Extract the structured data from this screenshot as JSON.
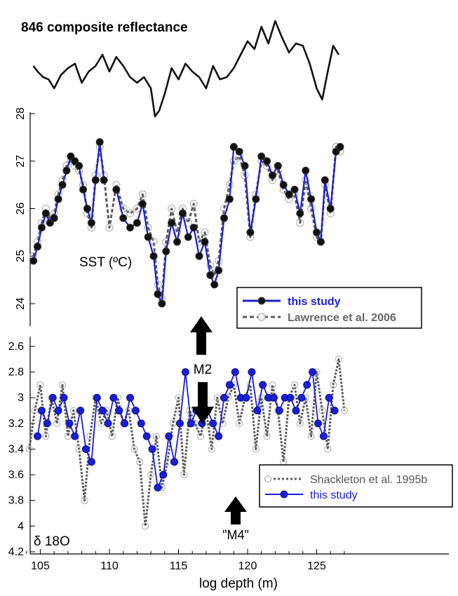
{
  "chart_data": [
    {
      "type": "line",
      "title": "846 composite reflectance",
      "x": [
        104.5,
        104.8,
        105.2,
        105.6,
        106.0,
        106.5,
        107.0,
        107.5,
        108.0,
        108.5,
        109.0,
        109.5,
        110.0,
        110.5,
        111.0,
        111.5,
        112.0,
        112.5,
        113.0,
        113.3,
        113.6,
        114.0,
        114.5,
        115.0,
        115.5,
        116.0,
        116.5,
        117.0,
        117.5,
        118.0,
        118.5,
        119.0,
        119.5,
        120.0,
        120.5,
        121.0,
        121.5,
        122.0,
        122.5,
        123.0,
        123.5,
        124.0,
        124.5,
        125.0,
        125.4,
        125.8,
        126.2,
        126.6
      ],
      "values": [
        0.6,
        0.55,
        0.5,
        0.48,
        0.4,
        0.52,
        0.58,
        0.62,
        0.45,
        0.55,
        0.6,
        0.7,
        0.55,
        0.68,
        0.6,
        0.5,
        0.45,
        0.5,
        0.4,
        0.15,
        0.2,
        0.35,
        0.58,
        0.48,
        0.62,
        0.55,
        0.5,
        0.4,
        0.6,
        0.48,
        0.5,
        0.58,
        0.7,
        0.82,
        0.75,
        0.95,
        0.8,
        1.0,
        0.85,
        0.72,
        0.8,
        0.78,
        0.62,
        0.4,
        0.3,
        0.55,
        0.78,
        0.7
      ],
      "xlim": [
        104,
        127
      ]
    },
    {
      "type": "line",
      "ylabel": "SST (ºC)",
      "ylim": [
        23.5,
        28
      ],
      "yticks": [
        24,
        25,
        26,
        27,
        28
      ],
      "xlim": [
        104,
        127
      ],
      "legend_placement": "lower-center",
      "series": [
        {
          "name": "this study",
          "color": "#1a1fd6",
          "marker": "filled-circle",
          "x": [
            104.5,
            104.8,
            105.1,
            105.4,
            105.7,
            106.0,
            106.3,
            106.6,
            106.9,
            107.2,
            107.5,
            107.8,
            108.1,
            108.4,
            108.7,
            109.0,
            109.3,
            109.6,
            110.0,
            110.5,
            111.0,
            111.5,
            112.0,
            112.4,
            112.8,
            113.2,
            113.5,
            113.8,
            114.1,
            114.5,
            114.9,
            115.3,
            115.7,
            116.1,
            116.5,
            116.9,
            117.3,
            117.6,
            117.9,
            118.3,
            118.7,
            119.0,
            119.4,
            119.8,
            120.2,
            120.6,
            121.0,
            121.4,
            121.8,
            122.2,
            122.6,
            123.0,
            123.4,
            123.8,
            124.2,
            124.6,
            125.0,
            125.3,
            125.6,
            126.0,
            126.4,
            126.7
          ],
          "values": [
            24.9,
            25.2,
            25.6,
            25.9,
            25.7,
            25.8,
            26.2,
            26.5,
            26.8,
            27.1,
            27.0,
            26.9,
            26.4,
            26.0,
            25.7,
            26.6,
            27.4,
            26.6,
            null,
            26.4,
            25.8,
            25.6,
            25.7,
            26.1,
            25.4,
            25.0,
            24.2,
            24.0,
            25.1,
            25.7,
            25.3,
            25.9,
            25.4,
            25.6,
            25.0,
            25.3,
            24.6,
            24.4,
            24.7,
            25.8,
            26.2,
            27.3,
            27.2,
            26.9,
            25.5,
            26.2,
            27.1,
            27.0,
            26.7,
            26.9,
            26.5,
            26.3,
            26.4,
            25.9,
            26.8,
            26.2,
            25.5,
            25.3,
            26.6,
            26.0,
            27.2,
            27.3
          ]
        },
        {
          "name": "Lawrence et al. 2006",
          "color": "#5a5a5a",
          "marker": "open-circle",
          "dash": "dashed",
          "x": [
            104.5,
            104.8,
            105.1,
            105.4,
            105.7,
            106.0,
            106.3,
            106.6,
            106.9,
            107.2,
            107.5,
            107.8,
            108.1,
            108.4,
            108.7,
            109.0,
            109.3,
            109.6,
            110.0,
            110.5,
            111.0,
            111.5,
            112.0,
            112.4,
            112.8,
            113.2,
            113.5,
            113.8,
            114.1,
            114.5,
            114.9,
            115.3,
            115.7,
            116.1,
            116.5,
            116.9,
            117.3,
            117.6,
            117.9,
            118.3,
            118.7,
            119.0,
            119.4,
            119.8,
            120.2,
            120.6,
            121.0,
            121.4,
            121.8,
            122.2,
            122.6,
            123.0,
            123.4,
            123.8,
            124.2,
            124.6,
            125.0,
            125.3,
            125.6,
            126.0,
            126.4,
            126.7
          ],
          "values": [
            25.0,
            25.3,
            25.7,
            26.0,
            25.8,
            25.9,
            26.3,
            26.6,
            26.9,
            27.0,
            26.9,
            26.8,
            26.5,
            25.9,
            25.6,
            26.7,
            27.3,
            26.7,
            25.6,
            26.5,
            26.0,
            25.9,
            26.0,
            26.3,
            25.6,
            25.3,
            24.4,
            24.1,
            25.3,
            26.0,
            25.5,
            26.0,
            25.7,
            26.1,
            25.3,
            25.5,
            24.8,
            24.6,
            24.9,
            26.0,
            26.5,
            27.0,
            27.1,
            26.7,
            25.4,
            26.3,
            27.0,
            26.9,
            26.6,
            26.8,
            26.4,
            26.2,
            26.3,
            25.7,
            26.6,
            26.0,
            25.4,
            25.3,
            26.5,
            25.9,
            27.3,
            27.2
          ]
        }
      ]
    },
    {
      "type": "line",
      "ylabel": "δ 18O",
      "yaxis_inverted": true,
      "ylim": [
        4.2,
        2.5
      ],
      "yticks": [
        2.6,
        2.8,
        3,
        3.2,
        3.4,
        3.6,
        3.8,
        4,
        4.2
      ],
      "xlim": [
        104,
        127
      ],
      "xticks": [
        105,
        110,
        115,
        120,
        125
      ],
      "xlabel": "log depth (m)",
      "legend_placement": "lower-right",
      "series": [
        {
          "name": "Shackleton et al. 1995b",
          "color": "#5a5a5a",
          "marker": "open-circle",
          "dash": "dotted",
          "x": [
            104.2,
            104.6,
            105.0,
            105.4,
            105.8,
            106.2,
            106.6,
            107.0,
            107.4,
            107.8,
            108.2,
            108.6,
            109.0,
            109.4,
            109.8,
            110.2,
            110.6,
            111.0,
            111.4,
            111.8,
            112.2,
            112.6,
            113.0,
            113.4,
            113.8,
            114.2,
            114.6,
            115.0,
            115.4,
            115.8,
            116.2,
            116.6,
            117.0,
            117.4,
            117.8,
            118.2,
            118.6,
            119.0,
            119.4,
            119.8,
            120.2,
            120.6,
            121.0,
            121.4,
            121.8,
            122.2,
            122.6,
            123.0,
            123.4,
            123.8,
            124.2,
            124.6,
            125.0,
            125.4,
            125.8,
            126.2,
            126.6,
            127.0
          ],
          "values": [
            3.4,
            3.1,
            2.9,
            3.3,
            3.0,
            3.2,
            2.9,
            3.3,
            3.1,
            3.4,
            3.8,
            3.3,
            3.0,
            3.2,
            3.1,
            3.3,
            3.0,
            3.2,
            3.1,
            3.4,
            3.5,
            4.0,
            3.6,
            3.3,
            3.7,
            3.5,
            3.2,
            3.0,
            3.6,
            3.1,
            3.2,
            3.3,
            3.1,
            3.4,
            3.0,
            3.2,
            3.0,
            2.9,
            3.2,
            3.0,
            2.9,
            3.4,
            3.0,
            3.3,
            2.9,
            3.1,
            3.5,
            3.0,
            2.9,
            3.2,
            3.0,
            3.3,
            2.8,
            3.1,
            3.4,
            2.9,
            2.7,
            3.1
          ]
        },
        {
          "name": "this study",
          "color": "#1a1fd6",
          "marker": "filled-circle",
          "x": [
            104.8,
            105.1,
            105.5,
            105.9,
            106.3,
            106.7,
            107.1,
            107.5,
            107.9,
            108.3,
            108.7,
            109.1,
            109.5,
            109.9,
            110.3,
            110.7,
            111.1,
            111.5,
            111.9,
            112.3,
            112.7,
            113.1,
            113.5,
            113.9,
            114.3,
            114.7,
            115.1,
            115.5,
            115.9,
            116.3,
            116.7,
            117.1,
            117.5,
            117.9,
            118.3,
            118.7,
            119.1,
            119.5,
            119.9,
            120.3,
            120.7,
            121.1,
            121.5,
            121.9,
            122.3,
            122.7,
            123.1,
            123.5,
            123.9,
            124.3,
            124.7,
            125.1,
            125.5,
            125.9,
            126.3
          ],
          "values": [
            3.3,
            3.1,
            3.2,
            3.0,
            3.1,
            3.0,
            3.2,
            3.3,
            3.1,
            3.4,
            3.5,
            3.0,
            3.1,
            3.2,
            3.0,
            3.1,
            3.2,
            3.0,
            3.1,
            3.2,
            3.3,
            3.4,
            3.7,
            3.6,
            3.3,
            3.5,
            3.2,
            2.8,
            3.2,
            3.1,
            3.2,
            3.1,
            3.2,
            3.3,
            3.0,
            2.9,
            2.8,
            3.0,
            3.0,
            2.8,
            3.1,
            2.9,
            3.0,
            3.0,
            3.1,
            3.0,
            3.0,
            3.1,
            3.0,
            2.9,
            2.8,
            3.2,
            3.3,
            3.0,
            3.1
          ]
        }
      ]
    }
  ],
  "annotations": {
    "m2_label": "M2",
    "m4_label": "\"M4\""
  }
}
